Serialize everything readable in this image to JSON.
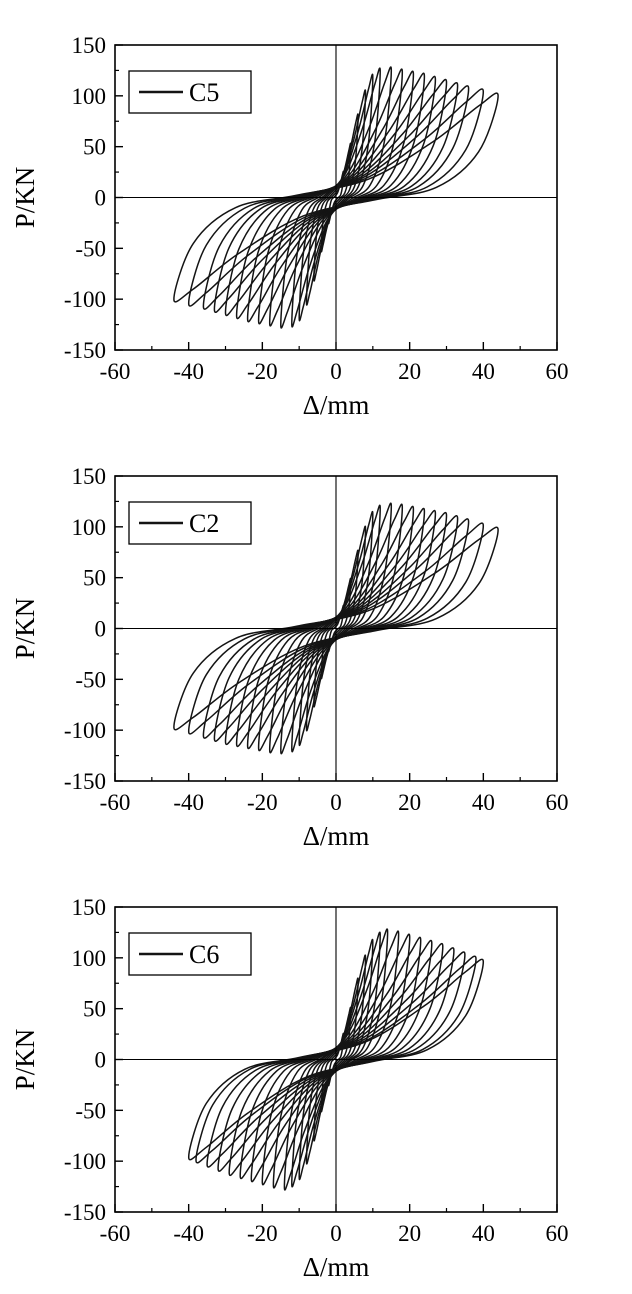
{
  "figure": {
    "background": "#ffffff"
  },
  "loop_shape_ascending": [
    [
      -1,
      -1
    ],
    [
      -0.88,
      -0.45
    ],
    [
      -0.62,
      -0.1
    ],
    [
      -0.25,
      0.02
    ],
    [
      0.2,
      0.18
    ],
    [
      0.6,
      0.55
    ],
    [
      0.88,
      0.9
    ],
    [
      1,
      1
    ]
  ],
  "chart_data": [
    {
      "type": "line",
      "title": "",
      "legend": "C5",
      "xlabel": "Δ/mm",
      "ylabel": "P/KN",
      "xlim": [
        -60,
        60
      ],
      "ylim": [
        -150,
        150
      ],
      "x_major_ticks": [
        -60,
        -40,
        -20,
        0,
        20,
        40,
        60
      ],
      "y_major_ticks": [
        -150,
        -100,
        -50,
        0,
        50,
        100,
        150
      ],
      "x_minor_step": 10,
      "y_minor_step": 25,
      "grid": false,
      "legend_position": "top-left",
      "series_color": "#141414",
      "description": "Cyclic load-displacement hysteresis loops, specimen C5; each cycle given as [displacement amplitude mm, peak load kN]",
      "cycles_amp_peak": [
        [
          2,
          25
        ],
        [
          4,
          52
        ],
        [
          6,
          80
        ],
        [
          8,
          103
        ],
        [
          10,
          118
        ],
        [
          12,
          124
        ],
        [
          15,
          125
        ],
        [
          18,
          123
        ],
        [
          21,
          121
        ],
        [
          24,
          119
        ],
        [
          27,
          116
        ],
        [
          30,
          113
        ],
        [
          33,
          110
        ],
        [
          36,
          107
        ],
        [
          40,
          104
        ],
        [
          44,
          100
        ]
      ]
    },
    {
      "type": "line",
      "title": "",
      "legend": "C2",
      "xlabel": "Δ/mm",
      "ylabel": "P/KN",
      "xlim": [
        -60,
        60
      ],
      "ylim": [
        -150,
        150
      ],
      "x_major_ticks": [
        -60,
        -40,
        -20,
        0,
        20,
        40,
        60
      ],
      "y_major_ticks": [
        -150,
        -100,
        -50,
        0,
        50,
        100,
        150
      ],
      "x_minor_step": 10,
      "y_minor_step": 25,
      "grid": false,
      "legend_position": "top-left",
      "series_color": "#141414",
      "description": "Cyclic load-displacement hysteresis loops, specimen C2; each cycle given as [displacement amplitude mm, peak load kN]",
      "cycles_amp_peak": [
        [
          2,
          22
        ],
        [
          4,
          48
        ],
        [
          6,
          75
        ],
        [
          8,
          98
        ],
        [
          10,
          112
        ],
        [
          12,
          118
        ],
        [
          15,
          120
        ],
        [
          18,
          119
        ],
        [
          21,
          117
        ],
        [
          24,
          115
        ],
        [
          27,
          113
        ],
        [
          30,
          111
        ],
        [
          33,
          108
        ],
        [
          36,
          105
        ],
        [
          40,
          101
        ],
        [
          44,
          97
        ]
      ]
    },
    {
      "type": "line",
      "title": "",
      "legend": "C6",
      "xlabel": "Δ/mm",
      "ylabel": "P/KN",
      "xlim": [
        -60,
        60
      ],
      "ylim": [
        -150,
        150
      ],
      "x_major_ticks": [
        -60,
        -40,
        -20,
        0,
        20,
        40,
        60
      ],
      "y_major_ticks": [
        -150,
        -100,
        -50,
        0,
        50,
        100,
        150
      ],
      "x_minor_step": 10,
      "y_minor_step": 25,
      "grid": false,
      "legend_position": "top-left",
      "series_color": "#141414",
      "description": "Cyclic load-displacement hysteresis loops, specimen C6; each cycle given as [displacement amplitude mm, peak load kN]",
      "cycles_amp_peak": [
        [
          2,
          25
        ],
        [
          4,
          50
        ],
        [
          6,
          78
        ],
        [
          8,
          100
        ],
        [
          10,
          115
        ],
        [
          12,
          122
        ],
        [
          14,
          125
        ],
        [
          17,
          123
        ],
        [
          20,
          120
        ],
        [
          23,
          117
        ],
        [
          26,
          114
        ],
        [
          29,
          111
        ],
        [
          32,
          107
        ],
        [
          35,
          103
        ],
        [
          38,
          99
        ],
        [
          40,
          96
        ]
      ]
    }
  ]
}
